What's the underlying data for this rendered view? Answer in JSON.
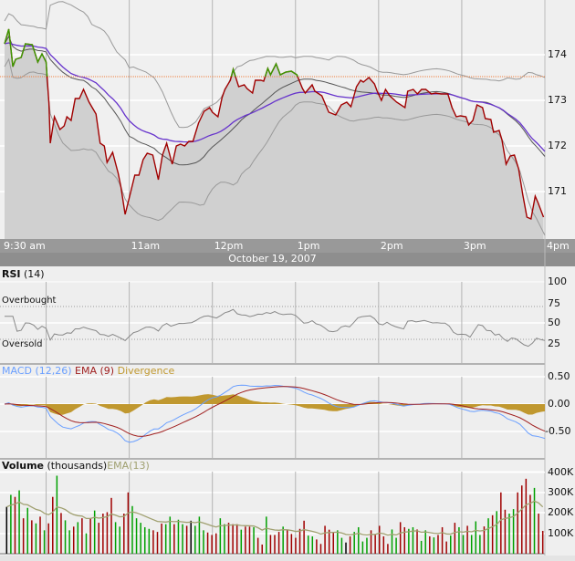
{
  "date_label": "October 19, 2007",
  "time_ticks": [
    {
      "t": "9:30",
      "label": "9:30 am"
    },
    {
      "t": "10:00",
      "label": ""
    },
    {
      "t": "11:00",
      "label": "11am"
    },
    {
      "t": "12:00",
      "label": "12pm"
    },
    {
      "t": "13:00",
      "label": "1pm"
    },
    {
      "t": "14:00",
      "label": "2pm"
    },
    {
      "t": "15:00",
      "label": "3pm"
    },
    {
      "t": "16:00",
      "label": "4pm"
    }
  ],
  "colors": {
    "price_down": "#a00000",
    "price_up": "#3a9a00",
    "area": "#d0d0d0",
    "bollinger": "#999999",
    "sma": "#555555",
    "ema": "#6633cc",
    "reference": "#f08040",
    "rsi": "#888888",
    "macd": "#6a9fff",
    "signal": "#a02020",
    "divergence": "#c0982f",
    "vol_up": "#00a000",
    "vol_down": "#a00000",
    "vol_flat": "#000000",
    "vol_ema": "#a0a070"
  },
  "chart_data": [
    {
      "type": "line",
      "panel": "price",
      "ylim": [
        170.0,
        175.2
      ],
      "yticks": [
        "171",
        "172",
        "173",
        "174"
      ],
      "reference_price": 173.52,
      "grid": true,
      "overlays": [
        "Bollinger Bands (20)",
        "SMA (20)",
        "EMA"
      ],
      "points": [
        [
          "9:30",
          174.24
        ],
        [
          "9:33",
          174.56
        ],
        [
          "9:36",
          173.74
        ],
        [
          "9:38",
          173.9
        ],
        [
          "9:42",
          173.94
        ],
        [
          "9:45",
          174.24
        ],
        [
          "9:50",
          174.22
        ],
        [
          "9:54",
          173.84
        ],
        [
          "9:57",
          174.02
        ],
        [
          "10:00",
          173.84
        ],
        [
          "10:02",
          172.94
        ],
        [
          "10:03",
          172.06
        ],
        [
          "10:06",
          172.64
        ],
        [
          "10:10",
          172.36
        ],
        [
          "10:13",
          172.44
        ],
        [
          "10:15",
          172.64
        ],
        [
          "10:18",
          172.56
        ],
        [
          "10:21",
          173.04
        ],
        [
          "10:24",
          173.04
        ],
        [
          "10:27",
          173.24
        ],
        [
          "10:31",
          172.96
        ],
        [
          "10:36",
          172.7
        ],
        [
          "10:39",
          172.06
        ],
        [
          "10:42",
          172.0
        ],
        [
          "10:44",
          171.64
        ],
        [
          "10:48",
          171.86
        ],
        [
          "10:52",
          171.4
        ],
        [
          "10:54",
          171.1
        ],
        [
          "10:57",
          170.5
        ],
        [
          "11:00",
          170.86
        ],
        [
          "11:04",
          171.36
        ],
        [
          "11:07",
          171.36
        ],
        [
          "11:10",
          171.7
        ],
        [
          "11:13",
          171.84
        ],
        [
          "11:17",
          171.8
        ],
        [
          "11:21",
          171.26
        ],
        [
          "11:24",
          171.8
        ],
        [
          "11:27",
          172.06
        ],
        [
          "11:31",
          171.6
        ],
        [
          "11:34",
          172.0
        ],
        [
          "11:37",
          172.04
        ],
        [
          "11:40",
          172.0
        ],
        [
          "11:43",
          172.1
        ],
        [
          "11:46",
          172.1
        ],
        [
          "11:50",
          172.5
        ],
        [
          "11:54",
          172.76
        ],
        [
          "11:58",
          172.84
        ],
        [
          "12:00",
          172.74
        ],
        [
          "12:04",
          172.64
        ],
        [
          "12:07",
          173.06
        ],
        [
          "12:09",
          173.24
        ],
        [
          "12:13",
          173.44
        ],
        [
          "12:15",
          173.68
        ],
        [
          "12:19",
          173.3
        ],
        [
          "12:23",
          173.34
        ],
        [
          "12:25",
          173.26
        ],
        [
          "12:29",
          173.16
        ],
        [
          "12:31",
          173.44
        ],
        [
          "12:35",
          173.44
        ],
        [
          "12:37",
          173.42
        ],
        [
          "12:40",
          173.7
        ],
        [
          "12:42",
          173.56
        ],
        [
          "12:46",
          173.8
        ],
        [
          "12:49",
          173.56
        ],
        [
          "12:53",
          173.62
        ],
        [
          "12:57",
          173.64
        ],
        [
          "13:01",
          173.56
        ],
        [
          "13:05",
          173.26
        ],
        [
          "13:07",
          173.16
        ],
        [
          "13:12",
          173.34
        ],
        [
          "13:14",
          173.2
        ],
        [
          "13:19",
          173.1
        ],
        [
          "13:24",
          172.74
        ],
        [
          "13:29",
          172.68
        ],
        [
          "13:33",
          172.9
        ],
        [
          "13:37",
          172.96
        ],
        [
          "13:40",
          172.86
        ],
        [
          "13:44",
          173.3
        ],
        [
          "13:47",
          173.44
        ],
        [
          "13:49",
          173.4
        ],
        [
          "13:53",
          173.5
        ],
        [
          "13:57",
          173.36
        ],
        [
          "13:59",
          173.2
        ],
        [
          "14:02",
          173.0
        ],
        [
          "14:05",
          173.24
        ],
        [
          "14:08",
          173.1
        ],
        [
          "14:13",
          172.96
        ],
        [
          "14:19",
          172.84
        ],
        [
          "14:21",
          173.2
        ],
        [
          "14:25",
          173.24
        ],
        [
          "14:28",
          173.14
        ],
        [
          "14:31",
          173.24
        ],
        [
          "14:34",
          173.24
        ],
        [
          "14:38",
          173.14
        ],
        [
          "14:41",
          173.16
        ],
        [
          "14:45",
          173.14
        ],
        [
          "14:50",
          173.14
        ],
        [
          "14:53",
          172.84
        ],
        [
          "14:56",
          172.64
        ],
        [
          "14:59",
          172.66
        ],
        [
          "15:03",
          172.64
        ],
        [
          "15:05",
          172.46
        ],
        [
          "15:08",
          172.56
        ],
        [
          "15:11",
          172.9
        ],
        [
          "15:15",
          172.84
        ],
        [
          "15:17",
          172.6
        ],
        [
          "15:21",
          172.58
        ],
        [
          "15:23",
          172.3
        ],
        [
          "15:27",
          172.34
        ],
        [
          "15:29",
          172.14
        ],
        [
          "15:32",
          171.6
        ],
        [
          "15:35",
          171.78
        ],
        [
          "15:38",
          171.8
        ],
        [
          "15:41",
          171.5
        ],
        [
          "15:44",
          170.94
        ],
        [
          "15:47",
          170.44
        ],
        [
          "15:50",
          170.4
        ],
        [
          "15:53",
          170.9
        ],
        [
          "15:55",
          170.76
        ],
        [
          "15:59",
          170.44
        ]
      ]
    },
    {
      "type": "line",
      "panel": "rsi",
      "title_bold": "RSI",
      "title_rest": " (14)",
      "ylim": [
        0,
        100
      ],
      "yticks": [
        "100",
        "75",
        "50",
        "25"
      ],
      "overbought_label": "Overbought",
      "oversold_label": "Oversold",
      "overbought": 75,
      "oversold": 25
    },
    {
      "type": "line",
      "panel": "macd",
      "series": [
        {
          "name": "MACD (12,26)"
        },
        {
          "name": "EMA (9)"
        },
        {
          "name": "Divergence"
        }
      ],
      "yticks": [
        "0.50",
        "0.00",
        "-0.50"
      ],
      "ylim": [
        -1.0,
        0.5
      ]
    },
    {
      "type": "bar",
      "panel": "volume",
      "title_bold": "Volume",
      "title_rest": " (thousands)",
      "ema_name": "EMA(13)",
      "yticks": [
        "400K",
        "300K",
        "200K",
        "100K"
      ],
      "ylim": [
        0,
        400
      ],
      "values": [
        [
          230,
          "flat"
        ],
        [
          289,
          "up"
        ],
        [
          279,
          "down"
        ],
        [
          311,
          "up"
        ],
        [
          174,
          "down"
        ],
        [
          225,
          "up"
        ],
        [
          164,
          "down"
        ],
        [
          149,
          "up"
        ],
        [
          182,
          "down"
        ],
        [
          115,
          "up"
        ],
        [
          149,
          "down"
        ],
        [
          279,
          "down"
        ],
        [
          383,
          "up"
        ],
        [
          200,
          "down"
        ],
        [
          164,
          "up"
        ],
        [
          115,
          "up"
        ],
        [
          133,
          "down"
        ],
        [
          155,
          "up"
        ],
        [
          174,
          "down"
        ],
        [
          100,
          "up"
        ],
        [
          174,
          "down"
        ],
        [
          212,
          "up"
        ],
        [
          152,
          "down"
        ],
        [
          197,
          "down"
        ],
        [
          204,
          "down"
        ],
        [
          274,
          "down"
        ],
        [
          155,
          "up"
        ],
        [
          133,
          "up"
        ],
        [
          197,
          "down"
        ],
        [
          301,
          "down"
        ],
        [
          234,
          "up"
        ],
        [
          174,
          "up"
        ],
        [
          152,
          "up"
        ],
        [
          130,
          "up"
        ],
        [
          122,
          "up"
        ],
        [
          115,
          "down"
        ],
        [
          107,
          "down"
        ],
        [
          148,
          "down"
        ],
        [
          145,
          "up"
        ],
        [
          182,
          "up"
        ],
        [
          145,
          "down"
        ],
        [
          167,
          "up"
        ],
        [
          145,
          "up"
        ],
        [
          137,
          "down"
        ],
        [
          162,
          "flat"
        ],
        [
          137,
          "up"
        ],
        [
          182,
          "up"
        ],
        [
          115,
          "up"
        ],
        [
          104,
          "down"
        ],
        [
          92,
          "down"
        ],
        [
          100,
          "down"
        ],
        [
          174,
          "up"
        ],
        [
          145,
          "up"
        ],
        [
          152,
          "down"
        ],
        [
          145,
          "down"
        ],
        [
          145,
          "down"
        ],
        [
          118,
          "up"
        ],
        [
          133,
          "down"
        ],
        [
          133,
          "down"
        ],
        [
          130,
          "up"
        ],
        [
          78,
          "down"
        ],
        [
          45,
          "down"
        ],
        [
          182,
          "up"
        ],
        [
          92,
          "down"
        ],
        [
          92,
          "down"
        ],
        [
          107,
          "down"
        ],
        [
          133,
          "up"
        ],
        [
          115,
          "down"
        ],
        [
          97,
          "down"
        ],
        [
          78,
          "down"
        ],
        [
          122,
          "down"
        ],
        [
          162,
          "down"
        ],
        [
          89,
          "up"
        ],
        [
          85,
          "up"
        ],
        [
          70,
          "down"
        ],
        [
          48,
          "down"
        ],
        [
          137,
          "down"
        ],
        [
          118,
          "down"
        ],
        [
          104,
          "down"
        ],
        [
          115,
          "up"
        ],
        [
          78,
          "up"
        ],
        [
          55,
          "flat"
        ],
        [
          85,
          "down"
        ],
        [
          107,
          "up"
        ],
        [
          130,
          "up"
        ],
        [
          60,
          "up"
        ],
        [
          78,
          "up"
        ],
        [
          115,
          "down"
        ],
        [
          92,
          "down"
        ],
        [
          137,
          "down"
        ],
        [
          85,
          "down"
        ],
        [
          48,
          "down"
        ],
        [
          119,
          "up"
        ],
        [
          78,
          "up"
        ],
        [
          155,
          "down"
        ],
        [
          130,
          "down"
        ],
        [
          122,
          "up"
        ],
        [
          130,
          "up"
        ],
        [
          119,
          "down"
        ],
        [
          63,
          "up"
        ],
        [
          115,
          "up"
        ],
        [
          85,
          "down"
        ],
        [
          80,
          "up"
        ],
        [
          92,
          "down"
        ],
        [
          130,
          "down"
        ],
        [
          60,
          "down"
        ],
        [
          89,
          "up"
        ],
        [
          152,
          "down"
        ],
        [
          130,
          "up"
        ],
        [
          92,
          "up"
        ],
        [
          137,
          "down"
        ],
        [
          92,
          "up"
        ],
        [
          159,
          "up"
        ],
        [
          92,
          "up"
        ],
        [
          134,
          "down"
        ],
        [
          174,
          "up"
        ],
        [
          189,
          "down"
        ],
        [
          209,
          "up"
        ],
        [
          301,
          "down"
        ],
        [
          216,
          "down"
        ],
        [
          197,
          "up"
        ],
        [
          219,
          "up"
        ],
        [
          301,
          "down"
        ],
        [
          335,
          "down"
        ],
        [
          368,
          "down"
        ],
        [
          289,
          "down"
        ],
        [
          323,
          "up"
        ],
        [
          197,
          "down"
        ],
        [
          112,
          "down"
        ]
      ]
    }
  ]
}
